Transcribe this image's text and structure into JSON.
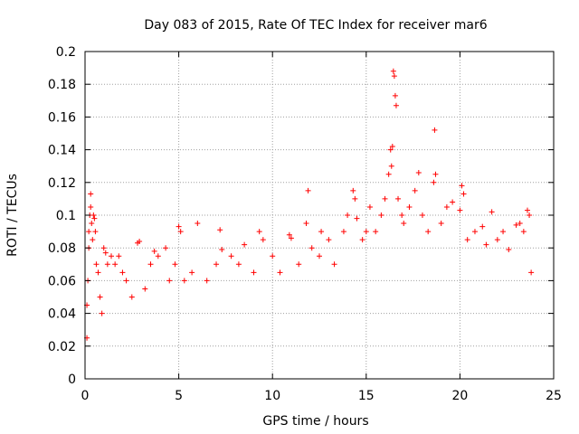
{
  "chart_data": {
    "type": "scatter",
    "title": "Day 083 of 2015, Rate Of TEC Index for receiver mar6",
    "xlabel": "GPS time / hours",
    "ylabel": "ROTI / TECUs",
    "xlim": [
      0,
      25
    ],
    "ylim": [
      0,
      0.2
    ],
    "x_ticks": [
      0,
      5,
      10,
      15,
      20,
      25
    ],
    "y_ticks": [
      0,
      0.02,
      0.04,
      0.06,
      0.08,
      0.1,
      0.12,
      0.14,
      0.16,
      0.18,
      0.2
    ],
    "x_tick_labels": [
      "0",
      "5",
      "10",
      "15",
      "20",
      "25"
    ],
    "y_tick_labels": [
      "0",
      "0.02",
      "0.04",
      "0.06",
      "0.08",
      "0.1",
      "0.12",
      "0.14",
      "0.16",
      "0.18",
      "0.2"
    ],
    "grid": true,
    "marker": "+",
    "color": "#ff0000",
    "series": [
      {
        "points": [
          [
            0.1,
            0.025
          ],
          [
            0.1,
            0.045
          ],
          [
            0.15,
            0.06
          ],
          [
            0.2,
            0.08
          ],
          [
            0.2,
            0.09
          ],
          [
            0.25,
            0.1
          ],
          [
            0.3,
            0.105
          ],
          [
            0.3,
            0.113
          ],
          [
            0.35,
            0.095
          ],
          [
            0.4,
            0.085
          ],
          [
            0.45,
            0.1
          ],
          [
            0.5,
            0.098
          ],
          [
            0.55,
            0.09
          ],
          [
            0.6,
            0.07
          ],
          [
            0.7,
            0.065
          ],
          [
            0.8,
            0.05
          ],
          [
            0.9,
            0.04
          ],
          [
            1.0,
            0.08
          ],
          [
            1.1,
            0.077
          ],
          [
            1.2,
            0.07
          ],
          [
            1.4,
            0.075
          ],
          [
            1.6,
            0.07
          ],
          [
            1.8,
            0.075
          ],
          [
            2.0,
            0.065
          ],
          [
            2.2,
            0.06
          ],
          [
            2.5,
            0.05
          ],
          [
            2.8,
            0.083
          ],
          [
            2.9,
            0.084
          ],
          [
            3.2,
            0.055
          ],
          [
            3.5,
            0.07
          ],
          [
            3.7,
            0.078
          ],
          [
            3.9,
            0.075
          ],
          [
            4.3,
            0.08
          ],
          [
            4.5,
            0.06
          ],
          [
            4.8,
            0.07
          ],
          [
            5.0,
            0.093
          ],
          [
            5.1,
            0.09
          ],
          [
            5.3,
            0.06
          ],
          [
            5.7,
            0.065
          ],
          [
            6.0,
            0.095
          ],
          [
            6.5,
            0.06
          ],
          [
            7.0,
            0.07
          ],
          [
            7.2,
            0.091
          ],
          [
            7.3,
            0.079
          ],
          [
            7.8,
            0.075
          ],
          [
            8.2,
            0.07
          ],
          [
            8.5,
            0.082
          ],
          [
            9.0,
            0.065
          ],
          [
            9.3,
            0.09
          ],
          [
            9.5,
            0.085
          ],
          [
            10.0,
            0.075
          ],
          [
            10.4,
            0.065
          ],
          [
            10.9,
            0.088
          ],
          [
            11.0,
            0.086
          ],
          [
            11.4,
            0.07
          ],
          [
            11.8,
            0.095
          ],
          [
            11.9,
            0.115
          ],
          [
            12.1,
            0.08
          ],
          [
            12.5,
            0.075
          ],
          [
            12.6,
            0.09
          ],
          [
            13.0,
            0.085
          ],
          [
            13.3,
            0.07
          ],
          [
            13.8,
            0.09
          ],
          [
            14.0,
            0.1
          ],
          [
            14.3,
            0.115
          ],
          [
            14.4,
            0.11
          ],
          [
            14.5,
            0.098
          ],
          [
            14.8,
            0.085
          ],
          [
            15.0,
            0.09
          ],
          [
            15.2,
            0.105
          ],
          [
            15.5,
            0.09
          ],
          [
            15.8,
            0.1
          ],
          [
            16.0,
            0.11
          ],
          [
            16.2,
            0.125
          ],
          [
            16.3,
            0.14
          ],
          [
            16.35,
            0.13
          ],
          [
            16.4,
            0.142
          ],
          [
            16.45,
            0.188
          ],
          [
            16.5,
            0.185
          ],
          [
            16.55,
            0.173
          ],
          [
            16.6,
            0.167
          ],
          [
            16.7,
            0.11
          ],
          [
            16.9,
            0.1
          ],
          [
            17.0,
            0.095
          ],
          [
            17.3,
            0.105
          ],
          [
            17.6,
            0.115
          ],
          [
            17.8,
            0.126
          ],
          [
            18.0,
            0.1
          ],
          [
            18.3,
            0.09
          ],
          [
            18.6,
            0.12
          ],
          [
            18.65,
            0.152
          ],
          [
            18.7,
            0.125
          ],
          [
            19.0,
            0.095
          ],
          [
            19.3,
            0.105
          ],
          [
            19.6,
            0.108
          ],
          [
            20.0,
            0.103
          ],
          [
            20.1,
            0.118
          ],
          [
            20.2,
            0.113
          ],
          [
            20.4,
            0.085
          ],
          [
            20.8,
            0.09
          ],
          [
            21.2,
            0.093
          ],
          [
            21.4,
            0.082
          ],
          [
            21.7,
            0.102
          ],
          [
            22.0,
            0.085
          ],
          [
            22.3,
            0.09
          ],
          [
            22.6,
            0.079
          ],
          [
            23.0,
            0.094
          ],
          [
            23.2,
            0.095
          ],
          [
            23.4,
            0.09
          ],
          [
            23.6,
            0.103
          ],
          [
            23.7,
            0.1
          ],
          [
            23.8,
            0.065
          ]
        ]
      }
    ]
  }
}
